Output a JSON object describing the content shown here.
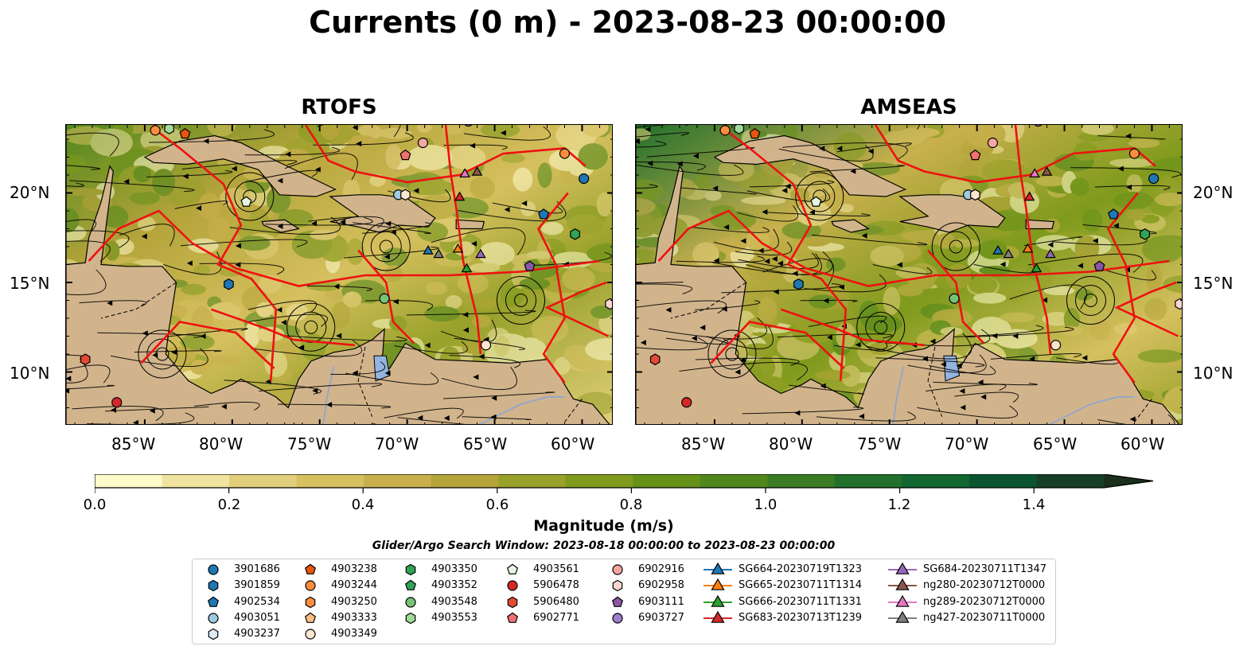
{
  "title": "Currents (0 m) - 2023-08-23 00:00:00",
  "panels": [
    {
      "title": "RTOFS"
    },
    {
      "title": "AMSEAS"
    }
  ],
  "axes": {
    "lat_ticks": [
      "20°N",
      "15°N",
      "10°N"
    ],
    "lon_ticks": [
      "85°W",
      "80°W",
      "75°W",
      "70°W",
      "65°W",
      "60°W"
    ]
  },
  "colorbar": {
    "label": "Magnitude (m/s)",
    "ticks": [
      "0.0",
      "0.2",
      "0.4",
      "0.6",
      "0.8",
      "1.0",
      "1.2",
      "1.4"
    ],
    "range": [
      0.0,
      1.6
    ],
    "extend": "max",
    "colors": [
      "#fefbcb",
      "#f0e4a0",
      "#e2cf7c",
      "#d6c05f",
      "#c9b04d",
      "#b4a43a",
      "#98a12a",
      "#7f9a1c",
      "#669118",
      "#4f871c",
      "#3a7c23",
      "#22702c",
      "#126630",
      "#0a5530",
      "#163f26",
      "#1a2f1c"
    ]
  },
  "search_window": "Glider/Argo Search Window: 2023-08-18 00:00:00 to 2023-08-23 00:00:00",
  "legend": {
    "columns": [
      [
        {
          "label": "3901686",
          "marker": "circle",
          "color": "#1f77b4"
        },
        {
          "label": "3901859",
          "marker": "hexagon",
          "color": "#1f77b4"
        },
        {
          "label": "4902534",
          "marker": "pentagon",
          "color": "#1f77b4"
        },
        {
          "label": "4903051",
          "marker": "circle",
          "color": "#9ecae1"
        },
        {
          "label": "4903237",
          "marker": "hexagon",
          "color": "#deebf7"
        }
      ],
      [
        {
          "label": "4903238",
          "marker": "pentagon",
          "color": "#e6550d"
        },
        {
          "label": "4903244",
          "marker": "circle",
          "color": "#fd8d3c"
        },
        {
          "label": "4903250",
          "marker": "hexagon",
          "color": "#fd8d3c"
        },
        {
          "label": "4903333",
          "marker": "pentagon",
          "color": "#fdbe85"
        },
        {
          "label": "4903349",
          "marker": "circle",
          "color": "#fee6ce"
        }
      ],
      [
        {
          "label": "4903350",
          "marker": "hexagon",
          "color": "#31a354"
        },
        {
          "label": "4903352",
          "marker": "pentagon",
          "color": "#31a354"
        },
        {
          "label": "4903548",
          "marker": "circle",
          "color": "#74c476"
        },
        {
          "label": "4903553",
          "marker": "hexagon",
          "color": "#a1d99b"
        }
      ],
      [
        {
          "label": "4903561",
          "marker": "pentagon",
          "color": "#e5f5e0"
        },
        {
          "label": "5906478",
          "marker": "circle",
          "color": "#d62728"
        },
        {
          "label": "5906480",
          "marker": "hexagon",
          "color": "#e34a33"
        },
        {
          "label": "6902771",
          "marker": "pentagon",
          "color": "#f07070"
        }
      ],
      [
        {
          "label": "6902916",
          "marker": "circle",
          "color": "#f4a6a0"
        },
        {
          "label": "6902958",
          "marker": "hexagon",
          "color": "#fbd5d0"
        },
        {
          "label": "6903111",
          "marker": "pentagon",
          "color": "#8856a7"
        },
        {
          "label": "6903727",
          "marker": "circle",
          "color": "#9e7fcd"
        }
      ],
      [
        {
          "label": "SG664-20230719T1323",
          "marker": "triangle",
          "color": "#1f77b4"
        },
        {
          "label": "SG665-20230711T1314",
          "marker": "triangle",
          "color": "#ff7f0e"
        },
        {
          "label": "SG666-20230711T1331",
          "marker": "triangle",
          "color": "#2ca02c"
        },
        {
          "label": "SG683-20230713T1239",
          "marker": "triangle",
          "color": "#d62728"
        }
      ],
      [
        {
          "label": "SG684-20230711T1347",
          "marker": "triangle",
          "color": "#9467bd"
        },
        {
          "label": "ng280-20230712T0000",
          "marker": "triangle",
          "color": "#8c564b"
        },
        {
          "label": "ng289-20230712T0000",
          "marker": "triangle",
          "color": "#e377c2"
        },
        {
          "label": "ng427-20230711T0000",
          "marker": "triangle",
          "color": "#7f7f7f"
        }
      ]
    ]
  },
  "map_markers": [
    {
      "lon": -84.4,
      "lat": 23.5,
      "marker": "circle",
      "color": "#fd8d3c"
    },
    {
      "lon": -83.6,
      "lat": 23.6,
      "marker": "hexagon",
      "color": "#a1d99b"
    },
    {
      "lon": -82.7,
      "lat": 23.3,
      "marker": "pentagon",
      "color": "#e6550d"
    },
    {
      "lon": -70.1,
      "lat": 22.1,
      "marker": "pentagon",
      "color": "#f07070"
    },
    {
      "lon": -69.1,
      "lat": 22.8,
      "marker": "circle",
      "color": "#f4a6a0"
    },
    {
      "lon": -66.5,
      "lat": 24.0,
      "marker": "circle",
      "color": "#9e7fcd"
    },
    {
      "lon": -61.0,
      "lat": 22.2,
      "marker": "circle",
      "color": "#fd8d3c"
    },
    {
      "lon": -59.9,
      "lat": 20.8,
      "marker": "circle",
      "color": "#1f77b4"
    },
    {
      "lon": -79.2,
      "lat": 19.5,
      "marker": "pentagon",
      "color": "#e5f5e0"
    },
    {
      "lon": -70.5,
      "lat": 19.9,
      "marker": "circle",
      "color": "#9ecae1"
    },
    {
      "lon": -70.1,
      "lat": 19.9,
      "marker": "hexagon",
      "color": "#fee6ce"
    },
    {
      "lon": -62.2,
      "lat": 18.8,
      "marker": "pentagon",
      "color": "#1f77b4"
    },
    {
      "lon": -60.4,
      "lat": 17.7,
      "marker": "hexagon",
      "color": "#31a354"
    },
    {
      "lon": -63.0,
      "lat": 15.9,
      "marker": "pentagon",
      "color": "#8856a7"
    },
    {
      "lon": -80.2,
      "lat": 14.9,
      "marker": "hexagon",
      "color": "#1f77b4"
    },
    {
      "lon": -71.3,
      "lat": 14.1,
      "marker": "circle",
      "color": "#74c476"
    },
    {
      "lon": -58.4,
      "lat": 13.8,
      "marker": "hexagon",
      "color": "#fbd5d0"
    },
    {
      "lon": -65.5,
      "lat": 11.5,
      "marker": "circle",
      "color": "#fee6ce"
    },
    {
      "lon": -88.4,
      "lat": 10.7,
      "marker": "hexagon",
      "color": "#e34a33"
    },
    {
      "lon": -86.6,
      "lat": 8.3,
      "marker": "circle",
      "color": "#d62728"
    },
    {
      "lon": -68.8,
      "lat": 16.8,
      "marker": "triangle",
      "color": "#1f77b4"
    },
    {
      "lon": -68.2,
      "lat": 16.6,
      "marker": "triangle",
      "color": "#7f7f7f"
    },
    {
      "lon": -67.1,
      "lat": 16.9,
      "marker": "triangle",
      "color": "#ff7f0e"
    },
    {
      "lon": -66.6,
      "lat": 15.8,
      "marker": "triangle",
      "color": "#2ca02c"
    },
    {
      "lon": -65.8,
      "lat": 16.6,
      "marker": "triangle",
      "color": "#9467bd"
    },
    {
      "lon": -67.0,
      "lat": 19.8,
      "marker": "triangle",
      "color": "#d62728"
    },
    {
      "lon": -66.7,
      "lat": 21.1,
      "marker": "triangle",
      "color": "#e377c2"
    },
    {
      "lon": -66.0,
      "lat": 21.2,
      "marker": "triangle",
      "color": "#8c564b"
    }
  ],
  "map_extent": {
    "lon": [
      -89.5,
      -58.2
    ],
    "lat": [
      7.0,
      23.8
    ]
  }
}
